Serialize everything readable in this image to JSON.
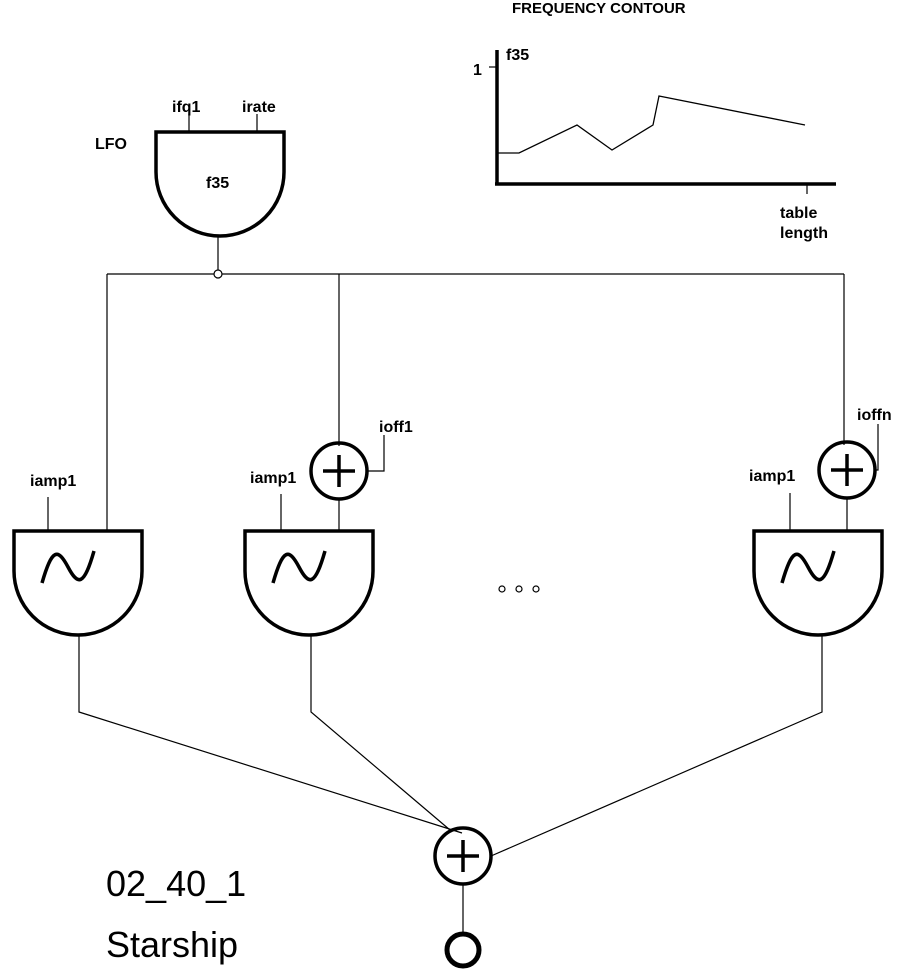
{
  "graph": {
    "title": "FREQUENCY CONTOUR",
    "y_tick_label": "1",
    "function_label": "f35",
    "x_label_line1": "table",
    "x_label_line2": "length"
  },
  "lfo": {
    "label": "LFO",
    "function": "f35",
    "input1": "ifq1",
    "input2": "irate"
  },
  "oscillators": {
    "osc1_amp": "iamp1",
    "osc2_amp": "iamp1",
    "osc2_offset": "ioff1",
    "oscn_amp": "iamp1",
    "oscn_offset": "ioffn"
  },
  "footer": {
    "instrument_id": "02_40_1",
    "instrument_name": "Starship"
  },
  "icons": {
    "adder": "plus-circle-icon",
    "oscillator": "sine-wave-icon",
    "output": "output-circle-icon",
    "continuation": "ellipsis-icon"
  }
}
